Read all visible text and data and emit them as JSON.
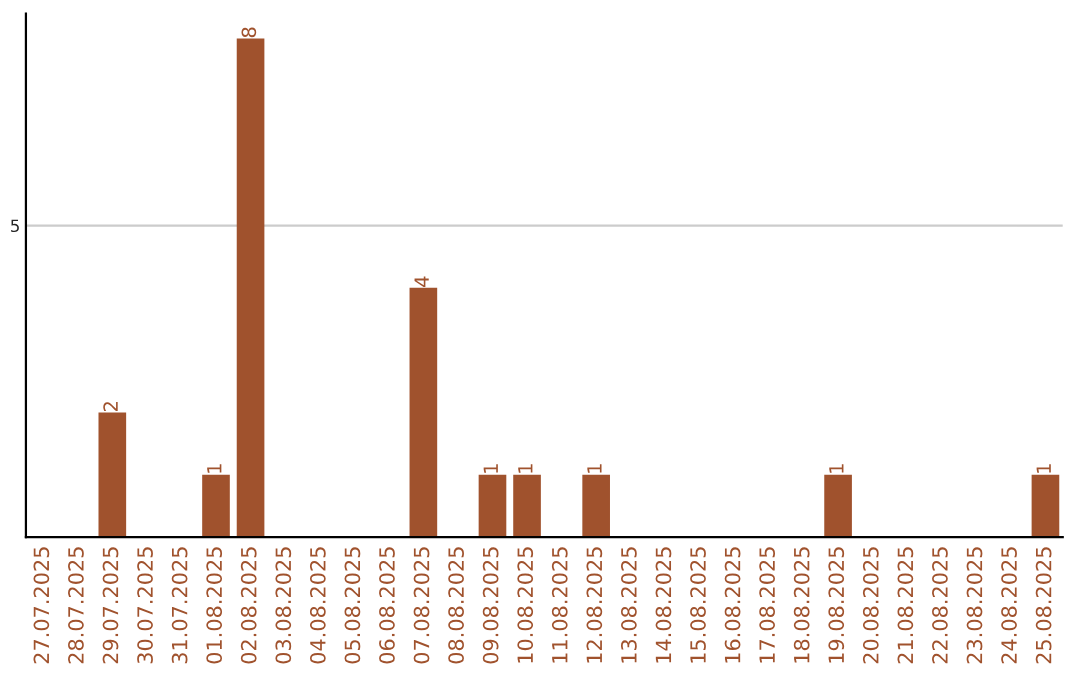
{
  "chart_data": {
    "type": "bar",
    "categories": [
      "27.07.2025",
      "28.07.2025",
      "29.07.2025",
      "30.07.2025",
      "31.07.2025",
      "01.08.2025",
      "02.08.2025",
      "03.08.2025",
      "04.08.2025",
      "05.08.2025",
      "06.08.2025",
      "07.08.2025",
      "08.08.2025",
      "09.08.2025",
      "10.08.2025",
      "11.08.2025",
      "12.08.2025",
      "13.08.2025",
      "14.08.2025",
      "15.08.2025",
      "16.08.2025",
      "17.08.2025",
      "18.08.2025",
      "19.08.2025",
      "20.08.2025",
      "21.08.2025",
      "22.08.2025",
      "23.08.2025",
      "24.08.2025",
      "25.08.2025"
    ],
    "values": [
      0,
      0,
      2,
      0,
      0,
      1,
      8,
      0,
      0,
      0,
      0,
      4,
      0,
      1,
      1,
      0,
      1,
      0,
      0,
      0,
      0,
      0,
      0,
      1,
      0,
      0,
      0,
      0,
      0,
      1
    ],
    "value_labels": [
      null,
      null,
      "2",
      null,
      null,
      "1",
      "8",
      null,
      null,
      null,
      null,
      "4",
      null,
      "1",
      "1",
      null,
      "1",
      null,
      null,
      null,
      null,
      null,
      null,
      "1",
      null,
      null,
      null,
      null,
      null,
      "1"
    ],
    "color": "#a0522d",
    "ylim": [
      0,
      8.4
    ],
    "yticks": [
      5
    ],
    "grid": "y",
    "legend": false
  }
}
